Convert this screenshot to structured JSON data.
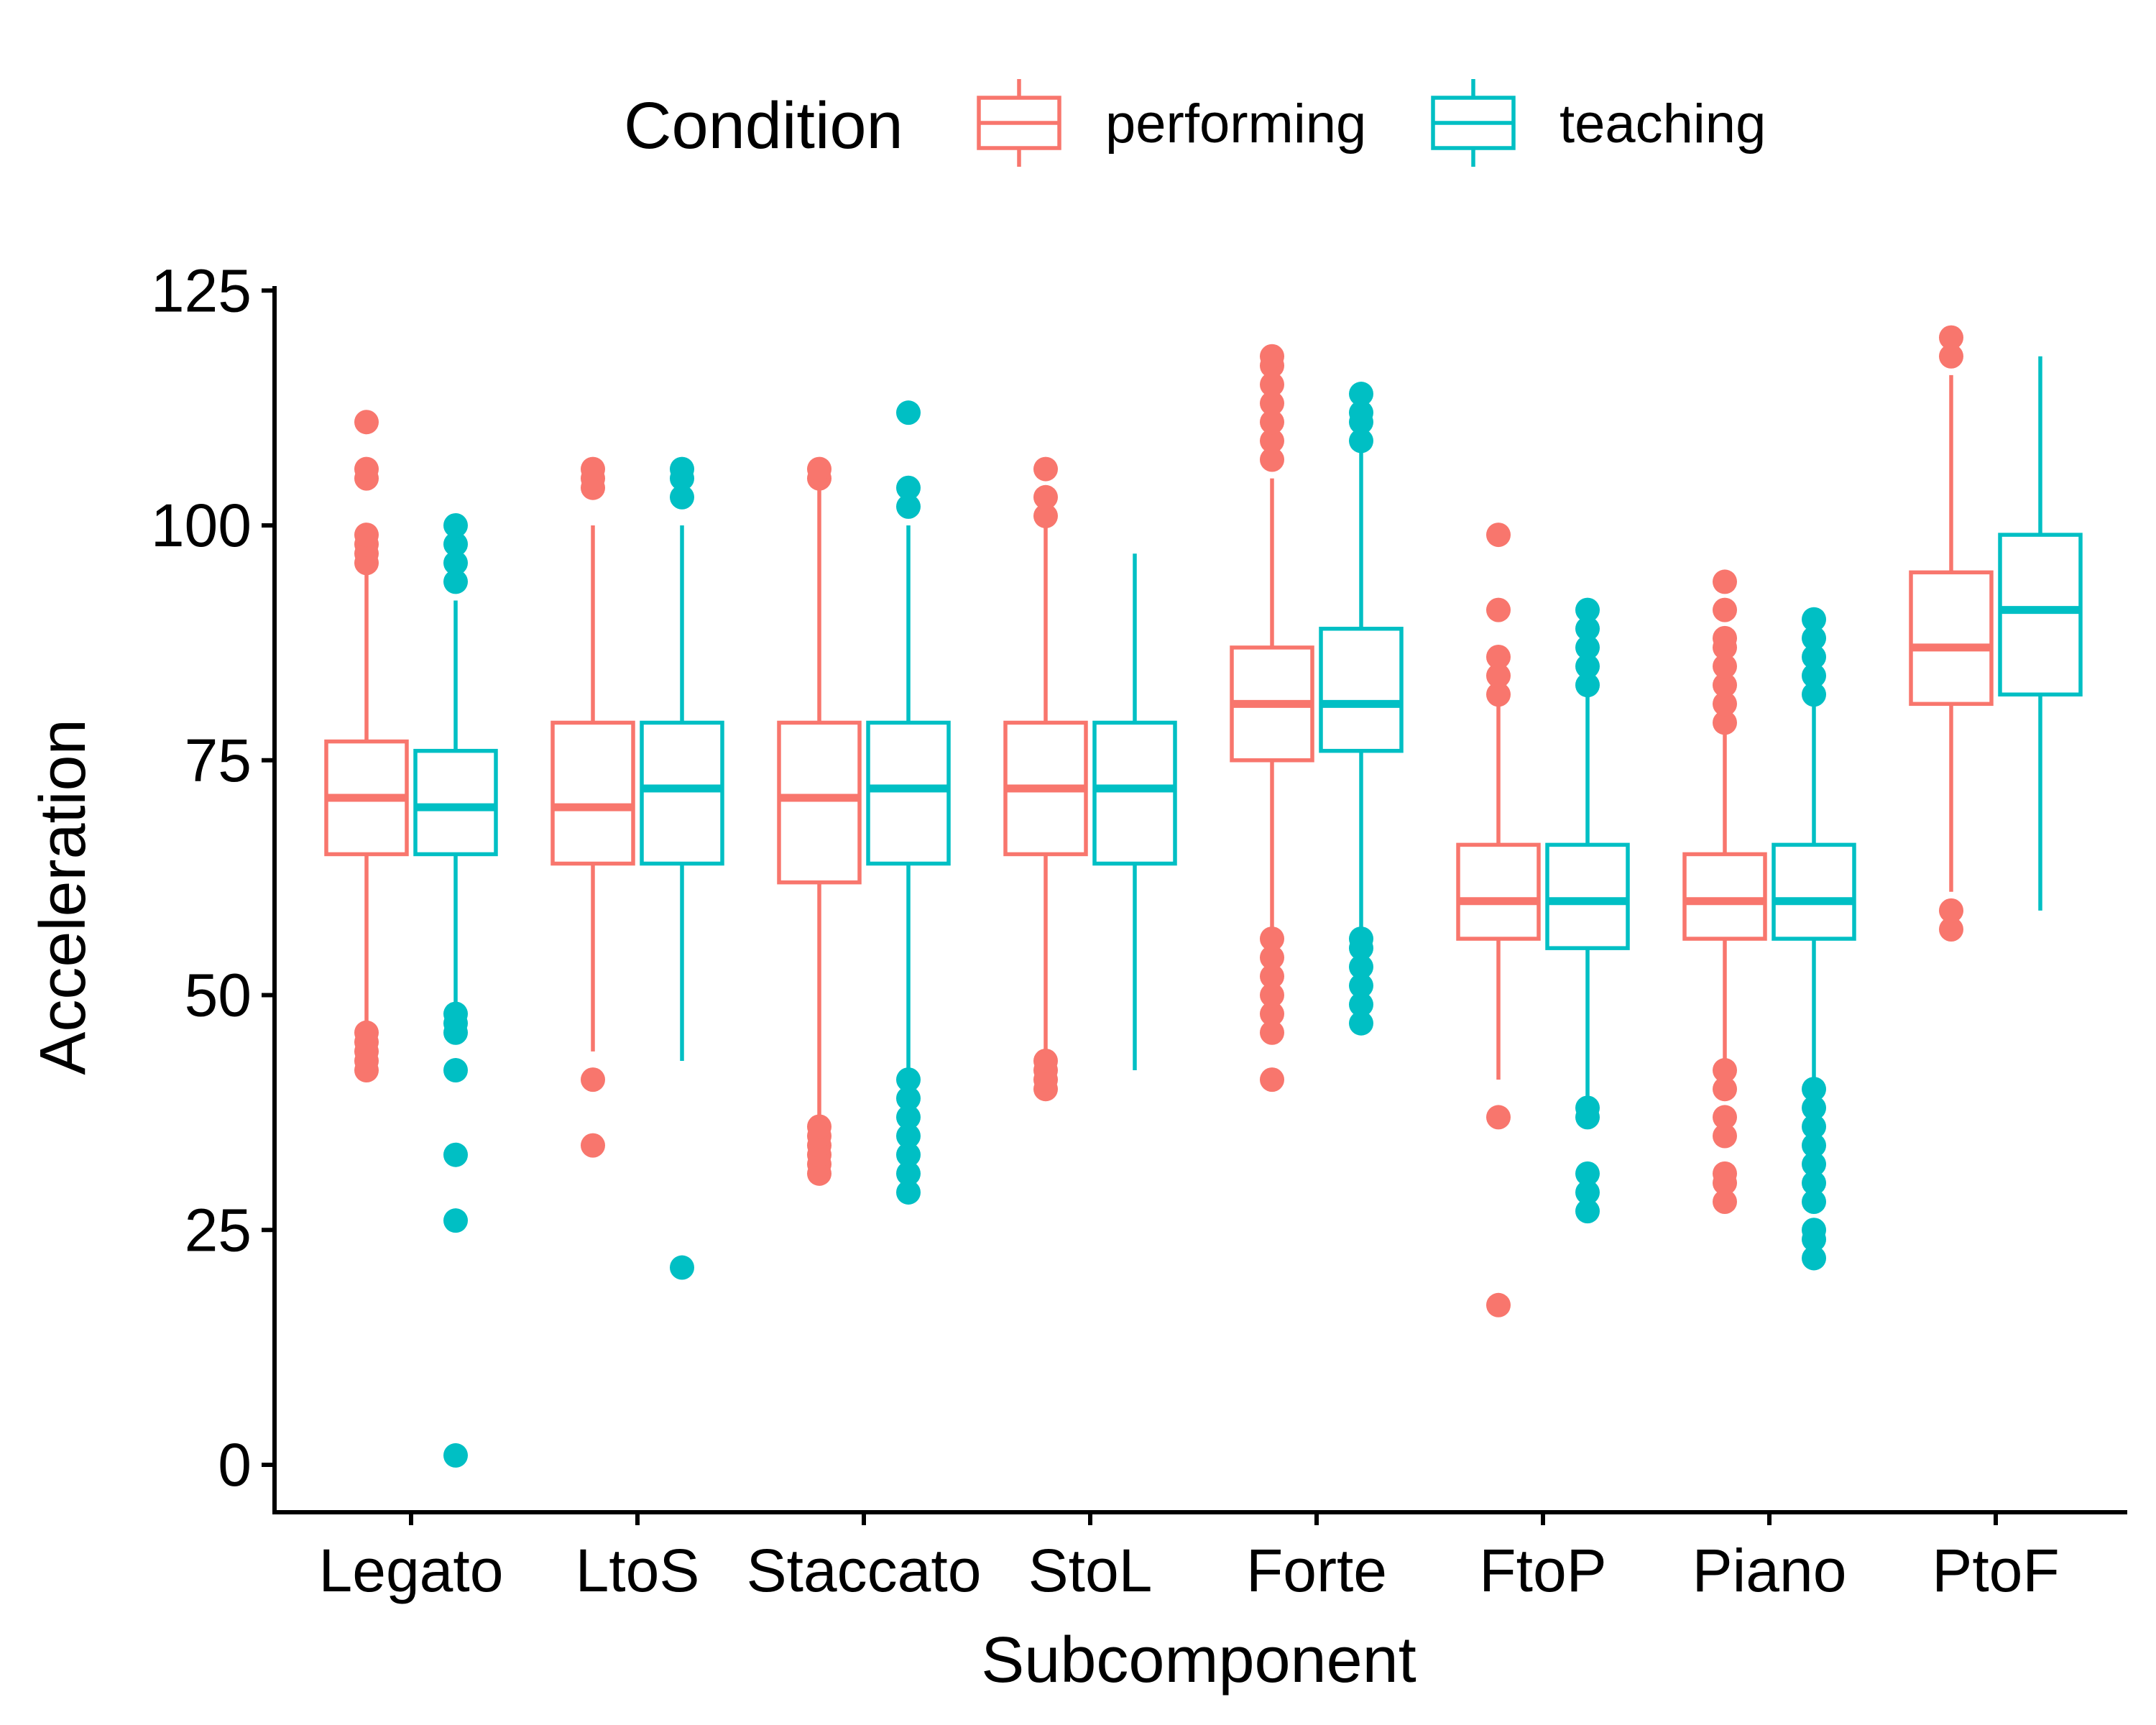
{
  "chart_data": {
    "type": "box",
    "xlabel": "Subcomponent",
    "ylabel": "Acceleration",
    "ylim": [
      -5,
      125
    ],
    "yticks": [
      0,
      25,
      50,
      75,
      100,
      125
    ],
    "grid": false,
    "legend_position": "top",
    "legend_title": "Condition",
    "categories": [
      "Legato",
      "LtoS",
      "Staccato",
      "StoL",
      "Forte",
      "FtoP",
      "Piano",
      "PtoF"
    ],
    "series": [
      {
        "name": "performing",
        "color": "#F8766D",
        "boxes": [
          {
            "whisker_low": 47,
            "q1": 65,
            "median": 71,
            "q3": 77,
            "whisker_high": 95,
            "outliers": [
              42,
              43,
              44,
              45,
              46,
              96,
              97,
              98,
              99,
              105,
              106,
              111
            ]
          },
          {
            "whisker_low": 44,
            "q1": 64,
            "median": 70,
            "q3": 79,
            "whisker_high": 100,
            "outliers": [
              34,
              41,
              104,
              105,
              106
            ]
          },
          {
            "whisker_low": 37,
            "q1": 62,
            "median": 71,
            "q3": 79,
            "whisker_high": 104,
            "outliers": [
              31,
              32,
              33,
              34,
              35,
              36,
              105,
              106
            ]
          },
          {
            "whisker_low": 44,
            "q1": 65,
            "median": 72,
            "q3": 79,
            "whisker_high": 100,
            "outliers": [
              40,
              41,
              42,
              43,
              101,
              103,
              106
            ]
          },
          {
            "whisker_low": 57,
            "q1": 75,
            "median": 81,
            "q3": 87,
            "whisker_high": 105,
            "outliers": [
              41,
              46,
              48,
              50,
              52,
              54,
              56,
              107,
              109,
              111,
              113,
              115,
              117,
              118
            ]
          },
          {
            "whisker_low": 41,
            "q1": 56,
            "median": 60,
            "q3": 66,
            "whisker_high": 81,
            "outliers": [
              17,
              37,
              82,
              84,
              86,
              91,
              99
            ]
          },
          {
            "whisker_low": 43,
            "q1": 56,
            "median": 60,
            "q3": 65,
            "whisker_high": 78,
            "outliers": [
              28,
              30,
              31,
              35,
              37,
              40,
              42,
              79,
              81,
              83,
              85,
              87,
              88,
              91,
              94
            ]
          },
          {
            "whisker_low": 61,
            "q1": 81,
            "median": 87,
            "q3": 95,
            "whisker_high": 116,
            "outliers": [
              57,
              59,
              118,
              120
            ]
          }
        ]
      },
      {
        "name": "teaching",
        "color": "#00BFC4",
        "boxes": [
          {
            "whisker_low": 49,
            "q1": 65,
            "median": 70,
            "q3": 76,
            "whisker_high": 92,
            "outliers": [
              1,
              26,
              33,
              42,
              46,
              47,
              48,
              94,
              96,
              98,
              100
            ]
          },
          {
            "whisker_low": 43,
            "q1": 64,
            "median": 72,
            "q3": 79,
            "whisker_high": 100,
            "outliers": [
              21,
              103,
              105,
              106
            ]
          },
          {
            "whisker_low": 42,
            "q1": 64,
            "median": 72,
            "q3": 79,
            "whisker_high": 100,
            "outliers": [
              29,
              31,
              33,
              35,
              37,
              39,
              41,
              102,
              104,
              112
            ]
          },
          {
            "whisker_low": 42,
            "q1": 64,
            "median": 72,
            "q3": 79,
            "whisker_high": 97,
            "outliers": []
          },
          {
            "whisker_low": 57,
            "q1": 76,
            "median": 81,
            "q3": 89,
            "whisker_high": 108,
            "outliers": [
              47,
              49,
              51,
              53,
              55,
              56,
              109,
              111,
              112,
              114
            ]
          },
          {
            "whisker_low": 39,
            "q1": 55,
            "median": 60,
            "q3": 66,
            "whisker_high": 82,
            "outliers": [
              27,
              29,
              31,
              37,
              38,
              83,
              85,
              87,
              89,
              91
            ]
          },
          {
            "whisker_low": 41,
            "q1": 56,
            "median": 60,
            "q3": 66,
            "whisker_high": 81,
            "outliers": [
              22,
              24,
              25,
              28,
              30,
              32,
              34,
              36,
              38,
              40,
              82,
              84,
              86,
              88,
              90
            ]
          },
          {
            "whisker_low": 59,
            "q1": 82,
            "median": 91,
            "q3": 99,
            "whisker_high": 118,
            "outliers": []
          }
        ]
      }
    ]
  }
}
